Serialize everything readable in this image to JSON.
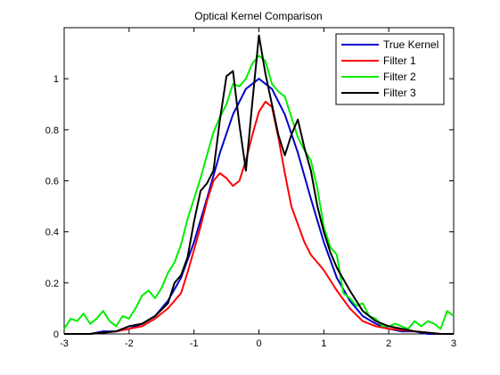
{
  "chart_data": {
    "type": "line",
    "title": "Optical Kernel Comparison",
    "xlabel": "",
    "ylabel": "",
    "xlim": [
      -3,
      3
    ],
    "ylim": [
      0,
      1.2
    ],
    "xticks": [
      "-3",
      "-2",
      "-1",
      "0",
      "1",
      "2",
      "3"
    ],
    "yticks": [
      "0",
      "0.2",
      "0.4",
      "0.6",
      "0.8",
      "1"
    ],
    "xtick_values": [
      -3,
      -2,
      -1,
      0,
      1,
      2,
      3
    ],
    "ytick_values": [
      0,
      0.2,
      0.4,
      0.6,
      0.8,
      1
    ],
    "grid": false,
    "legend": {
      "position": "top-right",
      "entries": [
        "True Kernel",
        "Filter 1",
        "Filter 2",
        "Filter 3"
      ]
    },
    "series": [
      {
        "name": "True Kernel",
        "color": "#0000cc",
        "x": [
          -3,
          -2.8,
          -2.6,
          -2.4,
          -2.2,
          -2.0,
          -1.8,
          -1.6,
          -1.4,
          -1.2,
          -1.0,
          -0.8,
          -0.6,
          -0.4,
          -0.2,
          0.0,
          0.2,
          0.4,
          0.6,
          0.8,
          1.0,
          1.2,
          1.4,
          1.6,
          1.8,
          2.0,
          2.2,
          2.4,
          2.6,
          2.8,
          3.0
        ],
        "y": [
          0.0,
          0.0,
          0.0,
          0.01,
          0.01,
          0.02,
          0.04,
          0.07,
          0.13,
          0.22,
          0.36,
          0.53,
          0.71,
          0.86,
          0.96,
          1.0,
          0.96,
          0.86,
          0.71,
          0.53,
          0.36,
          0.22,
          0.13,
          0.07,
          0.04,
          0.02,
          0.01,
          0.01,
          0.0,
          0.0,
          0.0
        ]
      },
      {
        "name": "Filter 1",
        "color": "#ff0000",
        "x": [
          -3,
          -2.6,
          -2.2,
          -2.0,
          -1.8,
          -1.6,
          -1.4,
          -1.2,
          -1.1,
          -1.0,
          -0.9,
          -0.8,
          -0.7,
          -0.6,
          -0.5,
          -0.4,
          -0.3,
          -0.2,
          -0.1,
          0.0,
          0.1,
          0.2,
          0.3,
          0.4,
          0.5,
          0.6,
          0.7,
          0.8,
          0.9,
          1.0,
          1.1,
          1.2,
          1.4,
          1.6,
          1.8,
          2.0,
          2.4,
          2.8,
          3.0
        ],
        "y": [
          0.0,
          0.0,
          0.01,
          0.02,
          0.03,
          0.06,
          0.1,
          0.16,
          0.24,
          0.33,
          0.42,
          0.52,
          0.6,
          0.63,
          0.61,
          0.58,
          0.6,
          0.68,
          0.78,
          0.87,
          0.91,
          0.89,
          0.77,
          0.63,
          0.5,
          0.43,
          0.36,
          0.31,
          0.28,
          0.25,
          0.21,
          0.17,
          0.1,
          0.05,
          0.03,
          0.02,
          0.01,
          0.0,
          0.0
        ]
      },
      {
        "name": "Filter 2",
        "color": "#00ee00",
        "x": [
          -3.0,
          -2.9,
          -2.8,
          -2.7,
          -2.6,
          -2.5,
          -2.4,
          -2.3,
          -2.2,
          -2.1,
          -2.0,
          -1.9,
          -1.8,
          -1.7,
          -1.6,
          -1.5,
          -1.4,
          -1.3,
          -1.2,
          -1.1,
          -1.0,
          -0.9,
          -0.8,
          -0.7,
          -0.6,
          -0.5,
          -0.4,
          -0.3,
          -0.2,
          -0.1,
          0.0,
          0.1,
          0.2,
          0.3,
          0.4,
          0.5,
          0.6,
          0.7,
          0.8,
          0.9,
          1.0,
          1.1,
          1.2,
          1.3,
          1.4,
          1.5,
          1.6,
          1.7,
          1.8,
          1.9,
          2.0,
          2.1,
          2.2,
          2.3,
          2.4,
          2.5,
          2.6,
          2.7,
          2.8,
          2.9,
          3.0
        ],
        "y": [
          0.02,
          0.06,
          0.05,
          0.08,
          0.04,
          0.06,
          0.09,
          0.05,
          0.03,
          0.07,
          0.06,
          0.1,
          0.15,
          0.17,
          0.14,
          0.18,
          0.24,
          0.28,
          0.35,
          0.45,
          0.53,
          0.61,
          0.7,
          0.79,
          0.85,
          0.9,
          0.98,
          0.97,
          1.0,
          1.06,
          1.09,
          1.07,
          0.98,
          0.95,
          0.93,
          0.85,
          0.77,
          0.72,
          0.68,
          0.57,
          0.42,
          0.34,
          0.31,
          0.16,
          0.14,
          0.11,
          0.12,
          0.07,
          0.06,
          0.03,
          0.03,
          0.04,
          0.03,
          0.02,
          0.05,
          0.03,
          0.05,
          0.04,
          0.02,
          0.09,
          0.07
        ]
      },
      {
        "name": "Filter 3",
        "color": "#000000",
        "x": [
          -3,
          -2.6,
          -2.2,
          -2.0,
          -1.8,
          -1.6,
          -1.4,
          -1.3,
          -1.2,
          -1.1,
          -1.0,
          -0.9,
          -0.8,
          -0.7,
          -0.6,
          -0.5,
          -0.4,
          -0.3,
          -0.2,
          -0.1,
          0.0,
          0.1,
          0.2,
          0.3,
          0.4,
          0.5,
          0.6,
          0.7,
          0.8,
          0.9,
          1.0,
          1.1,
          1.2,
          1.4,
          1.6,
          1.8,
          2.0,
          2.4,
          2.8,
          3.0
        ],
        "y": [
          0.0,
          0.0,
          0.01,
          0.03,
          0.04,
          0.07,
          0.12,
          0.2,
          0.23,
          0.3,
          0.44,
          0.56,
          0.59,
          0.64,
          0.84,
          1.01,
          1.03,
          0.82,
          0.64,
          0.91,
          1.17,
          1.02,
          0.9,
          0.78,
          0.7,
          0.78,
          0.84,
          0.73,
          0.64,
          0.5,
          0.4,
          0.32,
          0.26,
          0.17,
          0.09,
          0.05,
          0.03,
          0.01,
          0.0,
          0.0
        ]
      }
    ]
  }
}
